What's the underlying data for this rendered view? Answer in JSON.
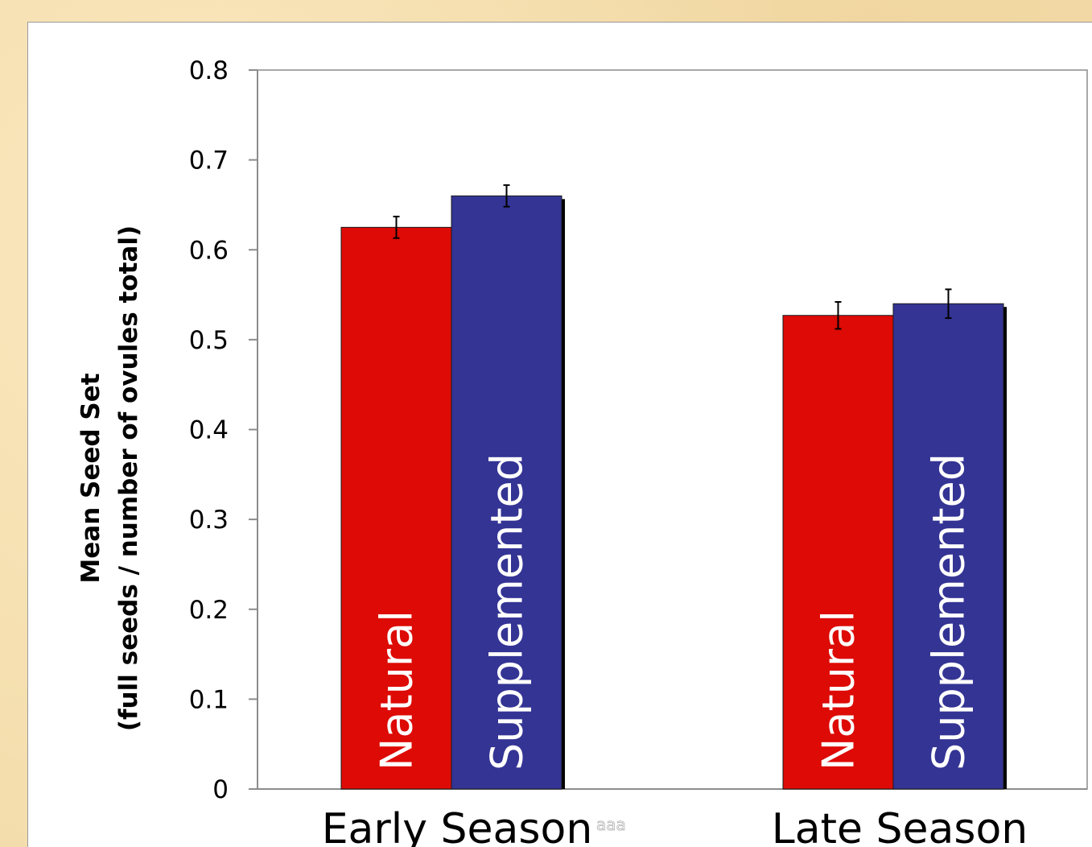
{
  "chart_data": {
    "type": "bar",
    "title": "",
    "xlabel": "",
    "ylabel_line1": "Mean Seed Set",
    "ylabel_line2": "(full seeds / number of ovules total)",
    "ylim": [
      0,
      0.8
    ],
    "yticks": [
      "0",
      "0.1",
      "0.2",
      "0.3",
      "0.4",
      "0.5",
      "0.6",
      "0.7",
      "0.8"
    ],
    "ytick_values": [
      0,
      0.1,
      0.2,
      0.3,
      0.4,
      0.5,
      0.6,
      0.7,
      0.8
    ],
    "categories": [
      "Early Season",
      "Late Season"
    ],
    "category_note": "aaa",
    "series": [
      {
        "name": "Natural",
        "color": "#dd0a05",
        "values": [
          0.625,
          0.527
        ],
        "errors": [
          0.012,
          0.015
        ]
      },
      {
        "name": "Supplemented",
        "color": "#343495",
        "values": [
          0.66,
          0.54
        ],
        "errors": [
          0.012,
          0.016
        ]
      }
    ],
    "grid": false,
    "legend": "none"
  }
}
